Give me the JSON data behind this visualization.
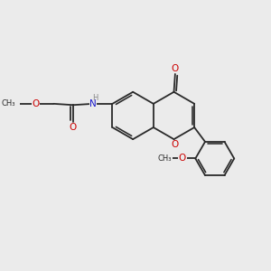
{
  "bg_color": "#ebebeb",
  "bond_color": "#2a2a2a",
  "bond_width": 1.3,
  "atom_colors": {
    "O": "#cc0000",
    "N": "#1a1acc",
    "H": "#888888",
    "C": "#2a2a2a"
  },
  "font_size_atom": 7.5,
  "font_size_small": 6.0,
  "fig_width": 3.0,
  "fig_height": 3.0,
  "dpi": 100,
  "xlim": [
    0,
    10
  ],
  "ylim": [
    0,
    10
  ]
}
